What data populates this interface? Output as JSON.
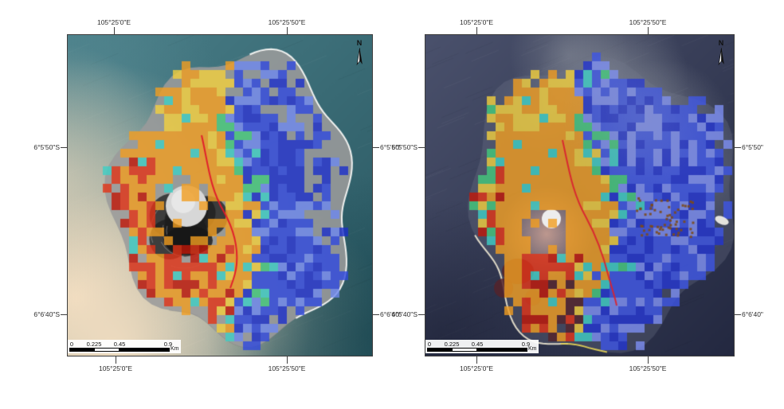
{
  "figure": {
    "background": "#ffffff"
  },
  "maps": [
    {
      "north_label": "N",
      "top_labels": [
        "105°25'0\"E",
        "105°25'50\"E"
      ],
      "bottom_labels": [
        "105°25'0\"E",
        "105°25'50\"E"
      ],
      "left_labels": [
        "6°5'50\"S",
        "6°6'40\"S"
      ],
      "right_labels": [
        "6°5'50\"",
        "6°6'40\""
      ],
      "scalebar": {
        "ticks": [
          "0",
          "0.225",
          "0.45",
          "0.9"
        ],
        "unit": "Km"
      },
      "colors": {
        "ocean_top": "#4a7f89",
        "ocean_bottom": "#295660",
        "sand": "#f4dfc2",
        "island_gray": "#9b9b9b",
        "coast": "#f8f8f5",
        "warm_orange": "#f19d20",
        "warm_yellow": "#f2d03d",
        "warm_red": "#e23317",
        "warm_deep_red": "#c11607",
        "cool_blue": "#2f49de",
        "cool_royal": "#1b2ecb",
        "cool_light": "#6e88ef",
        "cool_cyan": "#3fd0c5",
        "cool_green": "#44ca7c",
        "contour_red": "#e0192b",
        "crater_dark": "#282828",
        "crater_dome": "#d7d7d7"
      }
    },
    {
      "north_label": "N",
      "top_labels": [
        "105°25'0\"E",
        "105°25'50\"E"
      ],
      "bottom_labels": [
        "105°25'0\"E",
        "105°25'50\"E"
      ],
      "left_labels": [
        "6°5'50\"S",
        "6°6'40\"S"
      ],
      "right_labels": [
        "6°5'50\"",
        "6°6'40\""
      ],
      "scalebar": {
        "ticks": [
          "0",
          "0.225",
          "0.45",
          "0.9"
        ],
        "unit": "Km"
      },
      "colors": {
        "ocean_top": "#4a516c",
        "ocean_bottom": "#232840",
        "smoke": "#9fa4ab",
        "cone": "#c49c91",
        "cone_dome": "#ededed",
        "maroon": "#55232a",
        "speckle_brown": "#7c4a1c",
        "coast": "#efe9d3",
        "coast_yellow": "#e7d556",
        "warm_orange": "#f19d20",
        "warm_yellow": "#f2d03d",
        "warm_red": "#e23317",
        "warm_deep_red": "#c11607",
        "cool_blue": "#3d55e6",
        "cool_royal": "#2233cf",
        "cool_light": "#7d8ff2",
        "cool_cyan": "#3fd0c5",
        "cool_green": "#44ca7c",
        "contour_red": "#d92430"
      }
    }
  ]
}
